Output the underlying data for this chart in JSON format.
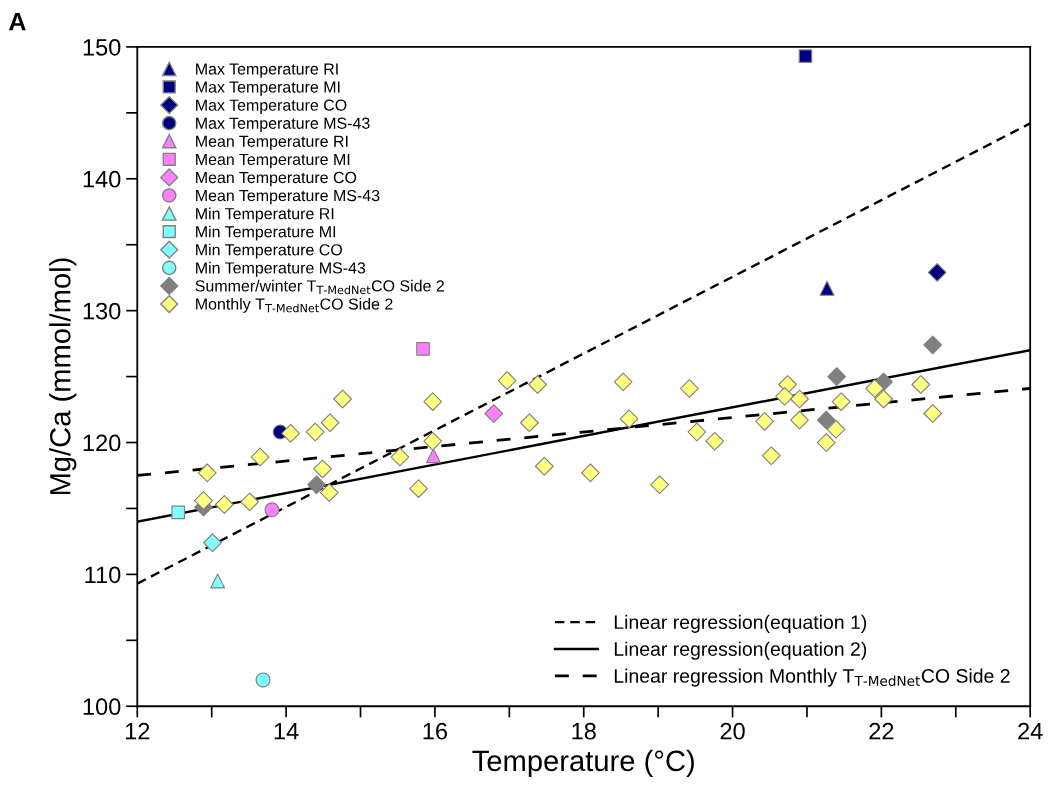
{
  "chart_data": {
    "type": "scatter",
    "xlabel": "Temperature (°C)",
    "ylabel": "Mg/Ca (mmol/mol)",
    "annotations": [
      "A"
    ],
    "xlim": [
      12,
      24
    ],
    "ylim": [
      100,
      150
    ],
    "xticks": [
      12,
      {
        "value": 13,
        "label": null
      },
      14,
      {
        "value": 15,
        "label": null
      },
      16,
      {
        "value": 17,
        "label": null
      },
      18,
      {
        "value": 19,
        "label": null
      },
      20,
      {
        "value": 21,
        "label": null
      },
      22,
      {
        "value": 23,
        "label": null
      },
      24
    ],
    "yticks": [
      100,
      {
        "value": 105,
        "label": null
      },
      110,
      {
        "value": 115,
        "label": null
      },
      120,
      {
        "value": 125,
        "label": null
      },
      130,
      {
        "value": 135,
        "label": null
      },
      140,
      {
        "value": 145,
        "label": null
      },
      150
    ],
    "grid": false,
    "legend": "top left",
    "series": [
      {
        "name": "Max Temperature RI",
        "marker": "triangle",
        "color": "#000080",
        "x": [
          21.27
        ],
        "values": [
          131.7
        ]
      },
      {
        "name": "Max Temperature MI",
        "marker": "square",
        "color": "#000080",
        "x": [
          20.98
        ],
        "values": [
          149.3
        ]
      },
      {
        "name": "Max Temperature CO",
        "marker": "diamond",
        "color": "#000080",
        "x": [
          22.75
        ],
        "values": [
          132.9
        ]
      },
      {
        "name": "Max Temperature MS-43",
        "marker": "circle",
        "color": "#000080",
        "x": [
          13.92
        ],
        "values": [
          120.8
        ]
      },
      {
        "name": "Mean Temperature RI",
        "marker": "triangle",
        "color": "#ff80ff",
        "x": [
          15.98
        ],
        "values": [
          119.0
        ]
      },
      {
        "name": "Mean Temperature MI",
        "marker": "square",
        "color": "#ff80ff",
        "x": [
          15.84
        ],
        "values": [
          127.1
        ]
      },
      {
        "name": "Mean Temperature CO",
        "marker": "diamond",
        "color": "#ff80ff",
        "x": [
          16.79
        ],
        "values": [
          122.2
        ]
      },
      {
        "name": "Mean Temperature MS-43",
        "marker": "circle",
        "color": "#ff80ff",
        "x": [
          13.81
        ],
        "values": [
          114.9
        ]
      },
      {
        "name": "Min Temperature RI",
        "marker": "triangle",
        "color": "#80ffff",
        "x": [
          13.08
        ],
        "values": [
          109.5
        ]
      },
      {
        "name": "Min Temperature MI",
        "marker": "square",
        "color": "#80ffff",
        "x": [
          12.55
        ],
        "values": [
          114.7
        ]
      },
      {
        "name": "Min Temperature CO",
        "marker": "diamond",
        "color": "#80ffff",
        "x": [
          13.01
        ],
        "values": [
          112.4
        ]
      },
      {
        "name": "Min Temperature MS-43",
        "marker": "circle",
        "color": "#80ffff",
        "x": [
          13.69
        ],
        "values": [
          102.0
        ]
      },
      {
        "name": "Summer/winter T$_{T-MedNet}$CO Side 2",
        "marker": "diamond",
        "color": "#808080",
        "x": [
          12.89,
          14.41,
          21.4,
          22.03,
          21.26,
          22.69
        ],
        "values": [
          115.1,
          116.8,
          125.0,
          124.6,
          121.7,
          127.4
        ]
      },
      {
        "name": "Monthly T$_{T-MedNet}$CO Side 2",
        "marker": "diamond",
        "color": "#ffff80",
        "x": [
          12.94,
          12.89,
          13.17,
          13.51,
          13.65,
          14.06,
          14.39,
          14.59,
          14.76,
          14.49,
          14.58,
          15.53,
          15.78,
          15.97,
          15.97,
          16.97,
          17.38,
          17.27,
          17.47,
          18.09,
          18.53,
          18.61,
          19.02,
          19.42,
          19.52,
          19.76,
          20.43,
          20.52,
          20.74,
          20.7,
          20.9,
          20.9,
          21.26,
          21.39,
          21.46,
          21.91,
          22.03,
          22.53,
          22.69
        ],
        "values": [
          117.7,
          115.6,
          115.3,
          115.5,
          118.9,
          120.7,
          120.8,
          121.5,
          123.3,
          118.0,
          116.2,
          118.9,
          116.5,
          123.1,
          120.1,
          124.7,
          124.4,
          121.5,
          118.2,
          117.7,
          124.6,
          121.8,
          116.8,
          124.1,
          120.8,
          120.1,
          121.6,
          119.0,
          124.4,
          123.5,
          123.3,
          121.7,
          120.0,
          121.0,
          123.1,
          124.1,
          123.3,
          124.4,
          122.2
        ]
      },
      {
        "name": "Linear regression(equation 1)",
        "type": "line",
        "line_style": "dashed",
        "color": "#000000",
        "x": [
          12,
          24
        ],
        "values": [
          109.3,
          144.2
        ]
      },
      {
        "name": "Linear regression(equation 2)",
        "type": "line",
        "line_style": "solid",
        "color": "#000000",
        "x": [
          12,
          24
        ],
        "values": [
          114.0,
          127.0
        ]
      },
      {
        "name": "Linear regression Monthly T$_{T-MedNet}$CO Side 2",
        "type": "line",
        "line_style": "dashed",
        "color": "#000000",
        "x": [
          12,
          24
        ],
        "values": [
          117.5,
          124.1
        ]
      }
    ]
  }
}
